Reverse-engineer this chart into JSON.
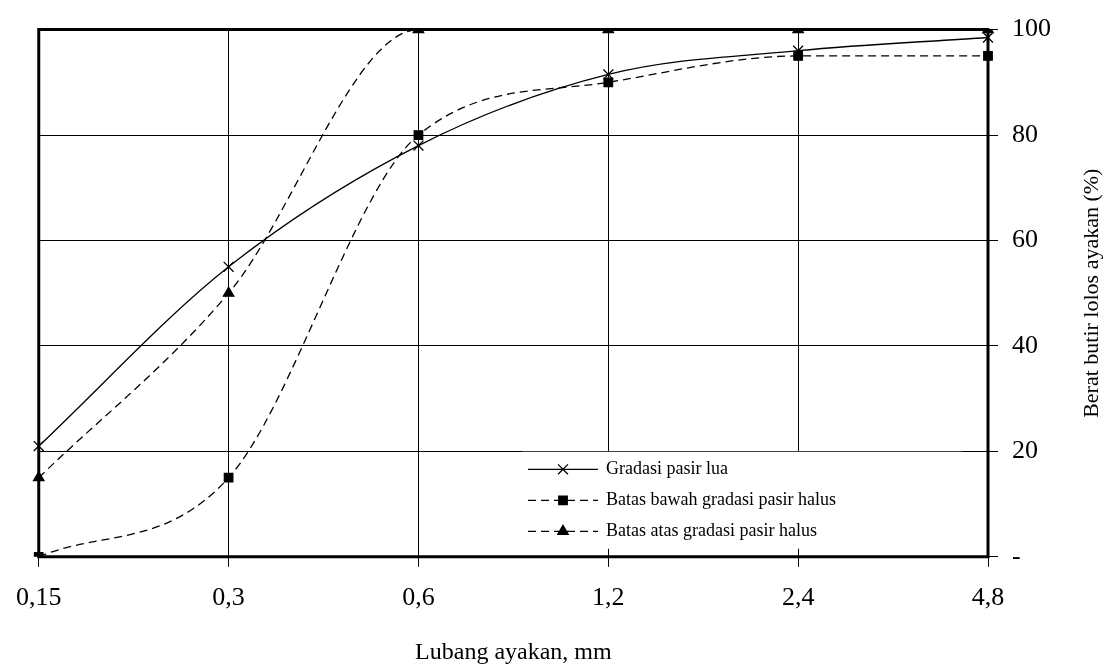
{
  "chart_data": {
    "type": "line",
    "xlabel": "Lubang ayakan, mm",
    "ylabel": "Berat butir lolos ayakan (%)",
    "categories": [
      "0,15",
      "0,3",
      "0,6",
      "1,2",
      "2,4",
      "4,8"
    ],
    "series": [
      {
        "name": "Gradasi pasir lua",
        "color": "#000000",
        "marker": "cross",
        "line_style": "solid",
        "values": [
          21,
          55,
          78,
          91.5,
          96,
          98.5
        ]
      },
      {
        "name": "Batas bawah gradasi pasir halus",
        "color": "#000000",
        "marker": "square",
        "line_style": "dashed",
        "values": [
          0,
          15,
          80,
          90,
          95,
          95
        ]
      },
      {
        "name": "Batas atas gradasi pasir halus",
        "color": "#000000",
        "marker": "triangle",
        "line_style": "dashed",
        "values": [
          15,
          50,
          100,
          100,
          100,
          100
        ]
      }
    ],
    "ylim": [
      0,
      100
    ],
    "yticks": [
      {
        "value": 0,
        "label": "-"
      },
      20,
      40,
      60,
      80,
      100
    ],
    "grid": true,
    "legend": "bottom right"
  }
}
